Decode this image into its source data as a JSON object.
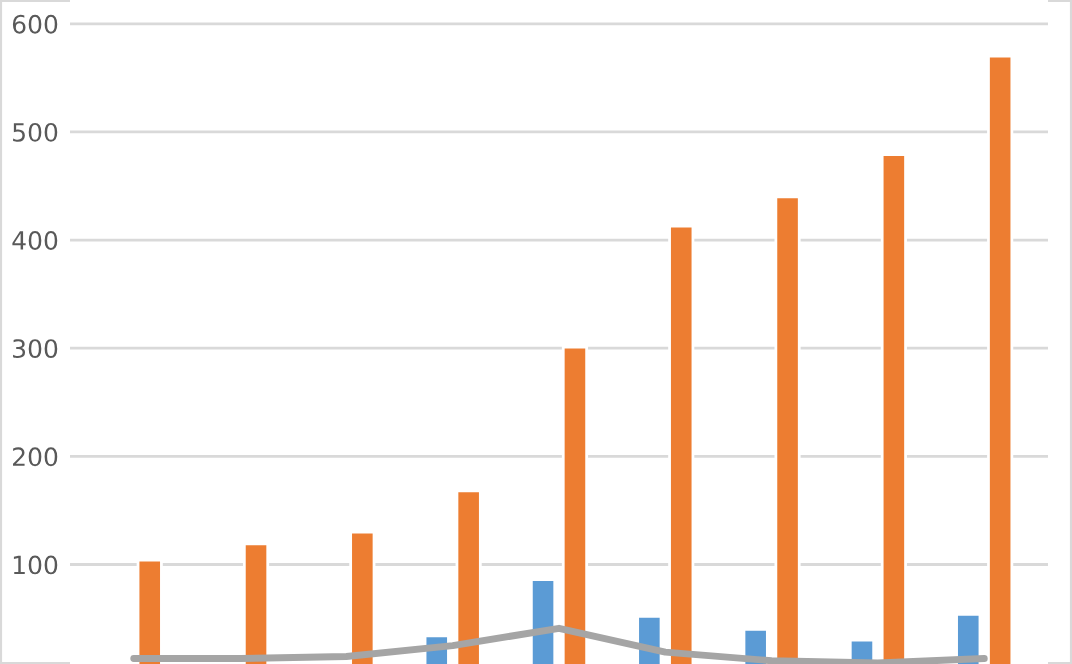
{
  "chart_data": {
    "type": "bar",
    "categories": [
      null,
      null,
      null,
      null,
      null,
      null,
      null,
      null,
      null
    ],
    "series": [
      {
        "color": "#5b9bd5",
        "values": [
          null,
          null,
          null,
          34,
          86,
          52,
          40,
          30,
          54
        ]
      },
      {
        "color": "#ed7d31",
        "values": [
          104,
          119,
          130,
          168,
          301,
          413,
          440,
          479,
          570
        ]
      },
      {
        "type": "line",
        "color": "#a5a5a5",
        "values": [
          13,
          13,
          15,
          25,
          41,
          19,
          11,
          9,
          13
        ]
      }
    ],
    "ylim": [
      8,
      622
    ],
    "yticks": [
      100,
      200,
      300,
      400,
      500,
      600
    ],
    "grid": "y",
    "tick_labels": "y",
    "legend": false
  }
}
